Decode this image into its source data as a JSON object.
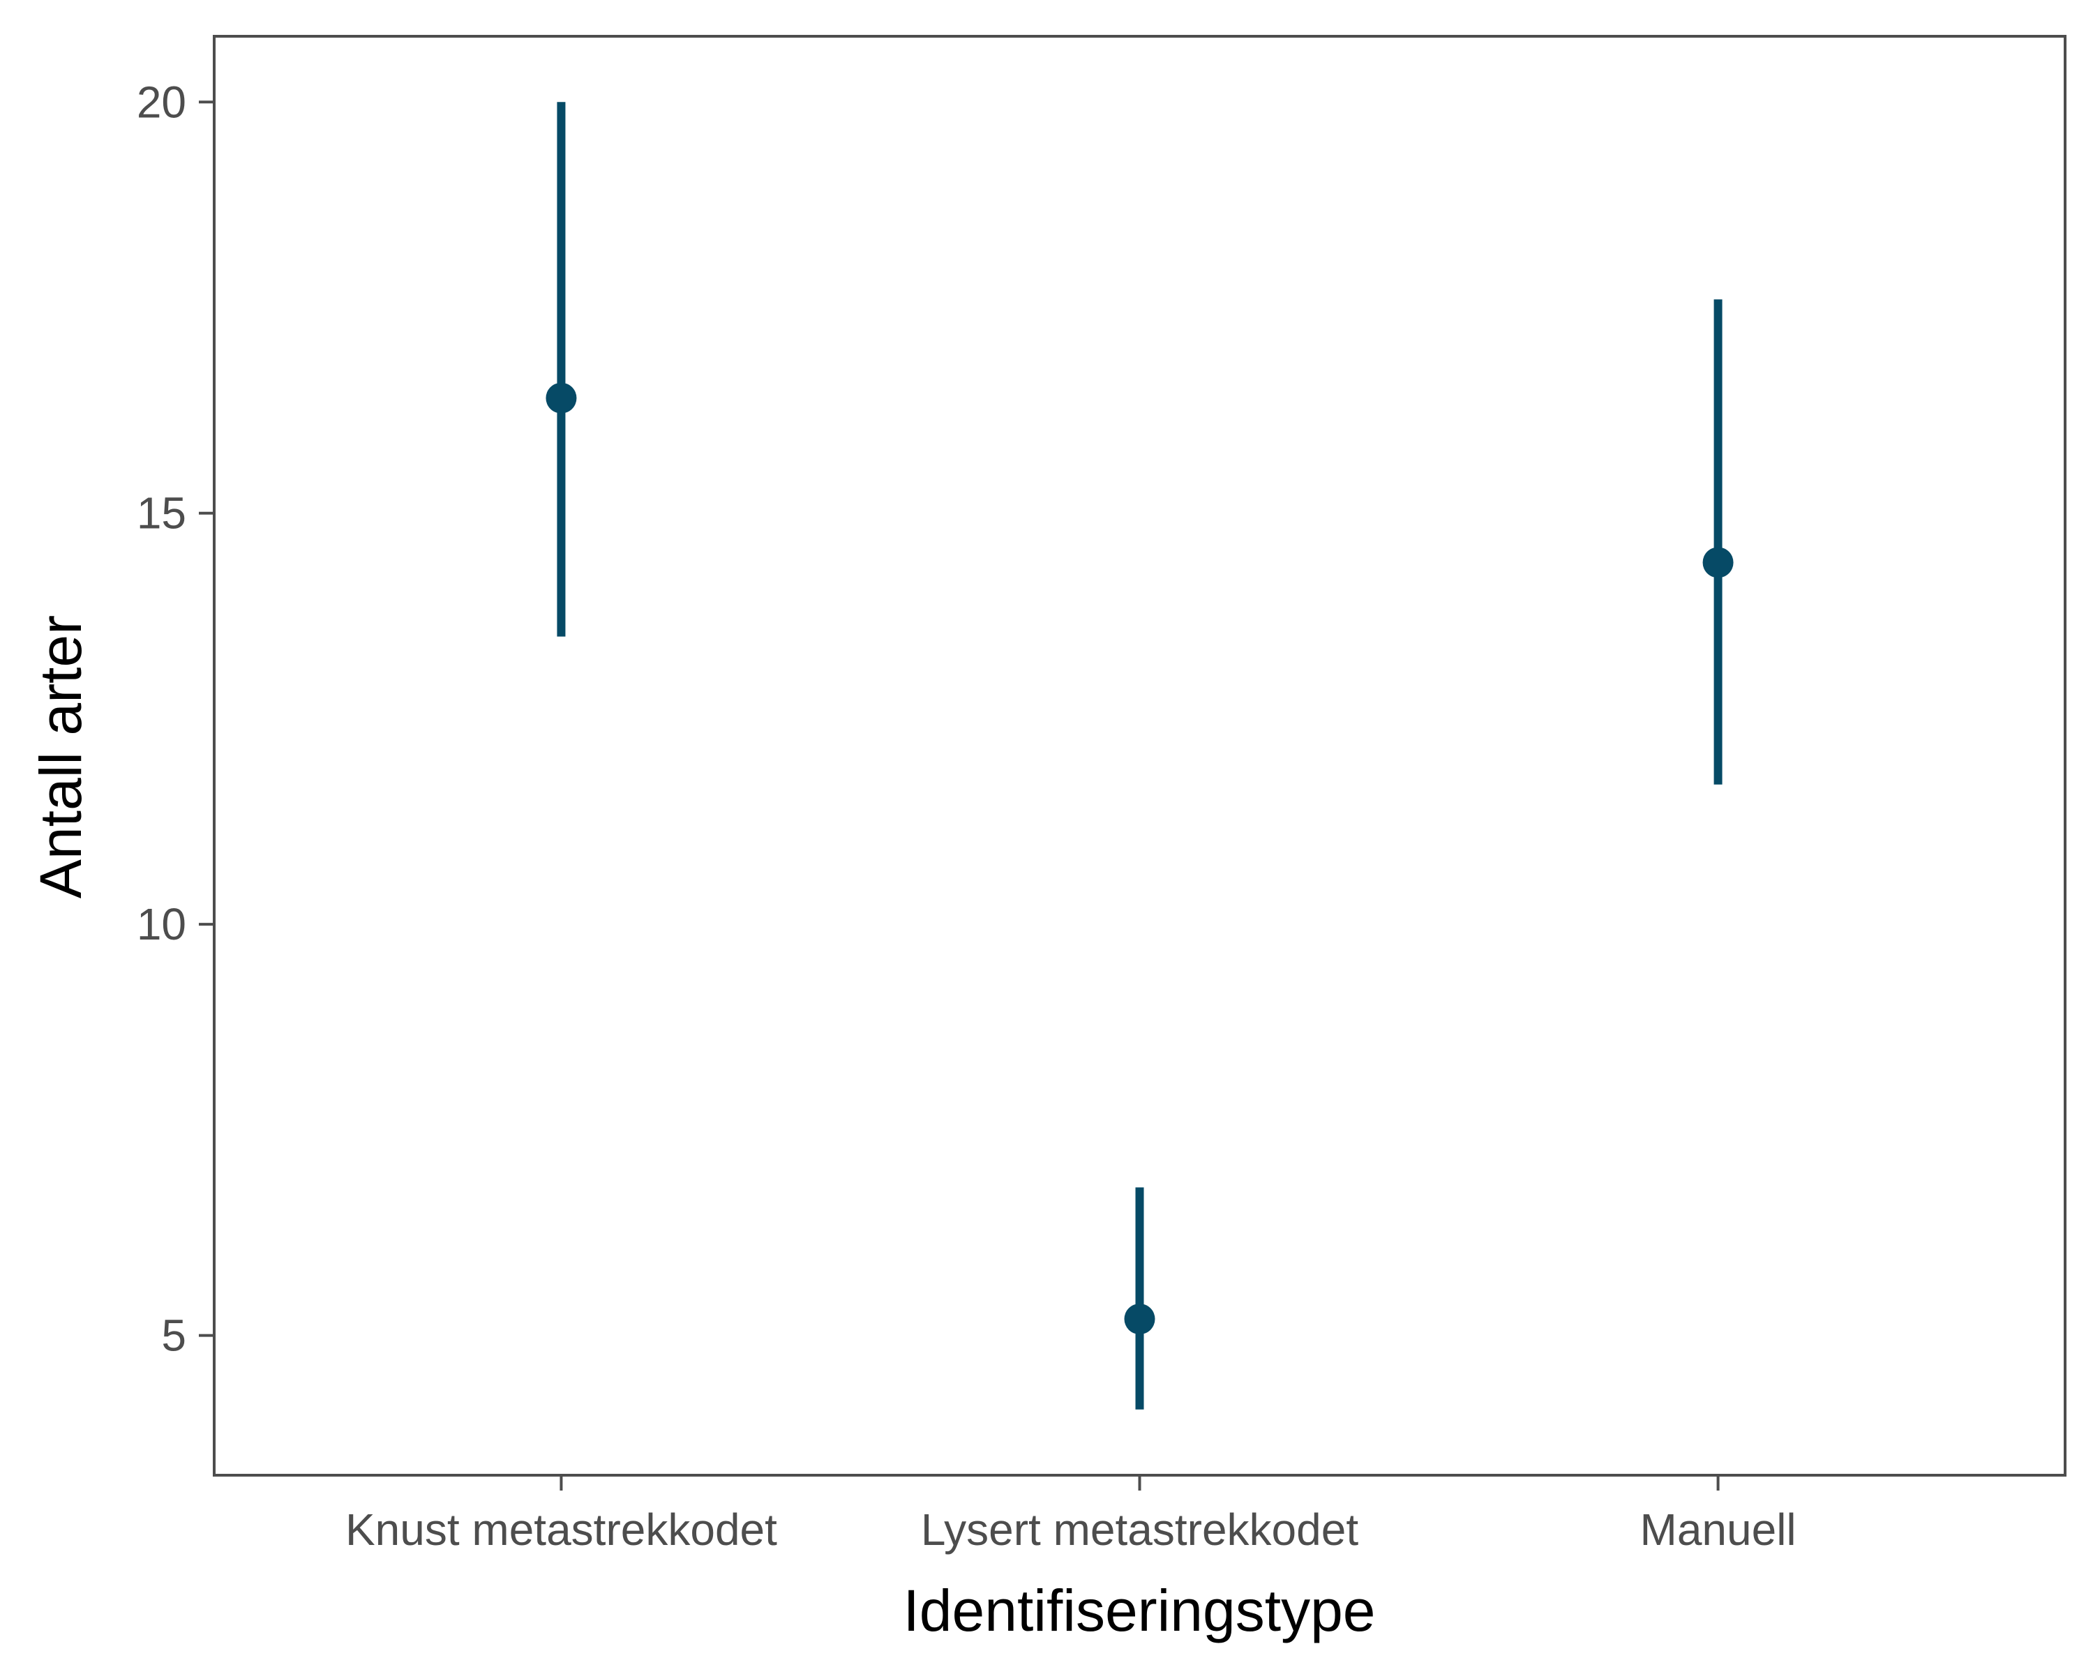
{
  "chart_data": {
    "type": "pointrange",
    "xlabel": "Identifiseringstype",
    "ylabel": "Antall arter",
    "categories": [
      "Knust metastrekkodet",
      "Lysert metastrekkodet",
      "Manuell"
    ],
    "points": [
      {
        "category": "Knust metastrekkodet",
        "estimate": 16.4,
        "lower": 13.5,
        "upper": 20.0
      },
      {
        "category": "Lysert metastrekkodet",
        "estimate": 5.2,
        "lower": 4.1,
        "upper": 6.8
      },
      {
        "category": "Manuell",
        "estimate": 14.4,
        "lower": 11.7,
        "upper": 17.6
      }
    ],
    "yticks": [
      5,
      10,
      15,
      20
    ],
    "ylim": [
      3.3,
      20.8
    ],
    "grid": false,
    "colors": {
      "series": "#064a66",
      "panel_border": "#4d4d4d",
      "tick_text": "#4d4d4d",
      "axis_title": "#000000"
    }
  }
}
